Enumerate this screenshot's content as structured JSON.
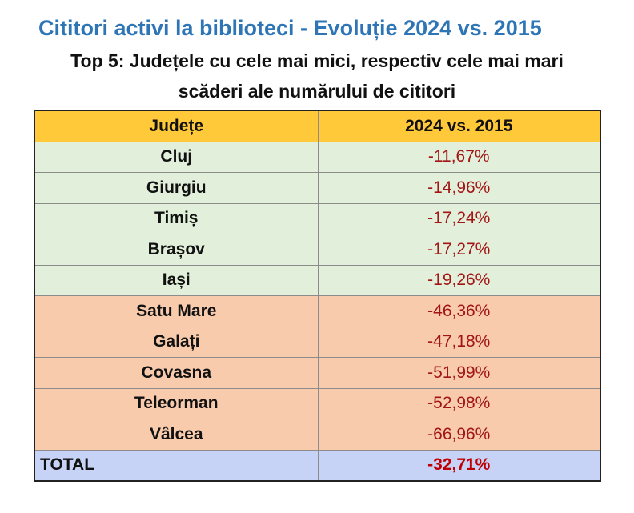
{
  "colors": {
    "title": "#2e75b6",
    "header_bg": "#ffc939",
    "low_group_bg": "#e2efda",
    "high_group_bg": "#f8cbad",
    "total_bg": "#c6d3f7",
    "value_text": "#a31515",
    "total_value_text": "#c00000"
  },
  "chart_data": {
    "type": "table",
    "title": "Cititori activi la biblioteci - Evoluție 2024 vs. 2015",
    "subtitle_line1": "Top 5: Județele cu cele mai mici, respectiv cele mai mari",
    "subtitle_line2": "scăderi ale numărului de cititori",
    "columns": [
      "Județe",
      "2024 vs. 2015"
    ],
    "rows": [
      {
        "county": "Cluj",
        "change": "-11,67%",
        "group": "low"
      },
      {
        "county": "Giurgiu",
        "change": "-14,96%",
        "group": "low"
      },
      {
        "county": "Timiș",
        "change": "-17,24%",
        "group": "low"
      },
      {
        "county": "Brașov",
        "change": "-17,27%",
        "group": "low"
      },
      {
        "county": "Iași",
        "change": "-19,26%",
        "group": "low"
      },
      {
        "county": "Satu Mare",
        "change": "-46,36%",
        "group": "high"
      },
      {
        "county": "Galați",
        "change": "-47,18%",
        "group": "high"
      },
      {
        "county": "Covasna",
        "change": "-51,99%",
        "group": "high"
      },
      {
        "county": "Teleorman",
        "change": "-52,98%",
        "group": "high"
      },
      {
        "county": "Vâlcea",
        "change": "-66,96%",
        "group": "high"
      }
    ],
    "total": {
      "label": "TOTAL",
      "change": "-32,71%"
    }
  }
}
